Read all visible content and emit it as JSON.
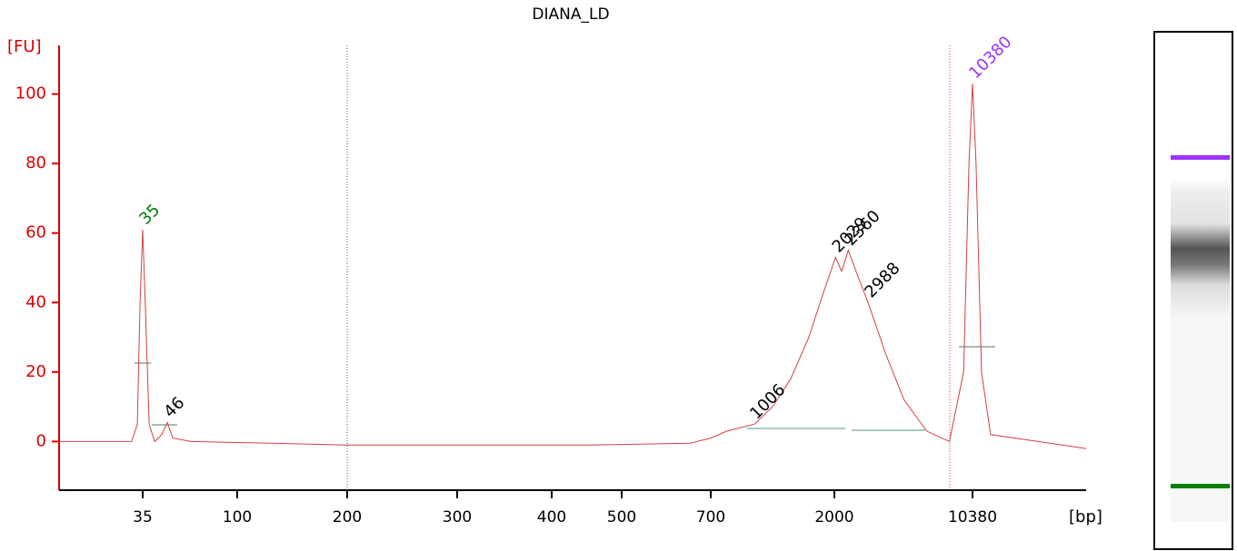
{
  "chart_data": {
    "type": "line",
    "title": "DIANA_LD",
    "ylabel": "[FU]",
    "xlabel": "[bp]",
    "color": "#d04040",
    "axis_color": "#dd0000",
    "x": [
      14,
      22,
      31,
      33,
      34,
      35,
      36,
      37.6,
      40,
      43.2,
      46,
      48.9,
      60,
      125,
      200,
      251,
      351,
      453,
      647,
      700,
      804,
      1014,
      1183,
      1380,
      1610,
      1807,
      2029,
      2180,
      2360,
      2670,
      2988,
      3700,
      4590,
      6010,
      7880,
      9330,
      9950,
      10380,
      10830,
      11550,
      12870,
      40180
    ],
    "values": [
      0,
      0,
      0,
      5,
      40,
      61,
      40,
      5,
      0,
      2,
      5.5,
      1,
      0,
      -0.5,
      -1,
      -1,
      -1,
      -1,
      -0.5,
      1,
      3,
      5,
      10,
      18,
      30,
      42,
      53,
      49,
      55,
      47,
      40,
      25,
      12,
      3,
      0,
      20,
      80,
      103,
      80,
      20,
      2,
      -2
    ],
    "xlim": [
      14,
      40180
    ],
    "xticks": [
      35,
      100,
      200,
      300,
      400,
      500,
      700,
      2000,
      10380
    ],
    "ylim": [
      -14,
      114
    ],
    "yticks": [
      0,
      20,
      40,
      60,
      80,
      100
    ],
    "annotations": [
      {
        "text": "35",
        "x": 35,
        "y": 61,
        "color": "#008000"
      },
      {
        "text": "46",
        "x": 46,
        "y": 5.5,
        "color": "#000000"
      },
      {
        "text": "1006",
        "x": 1006,
        "y": 5,
        "color": "#000000"
      },
      {
        "text": "2029",
        "x": 2029,
        "y": 53,
        "color": "#000000"
      },
      {
        "text": "2360",
        "x": 2360,
        "y": 55,
        "color": "#000000"
      },
      {
        "text": "2988",
        "x": 2988,
        "y": 40,
        "color": "#000000"
      },
      {
        "text": "10380",
        "x": 10380,
        "y": 103,
        "color": "#9933ff"
      }
    ]
  }
}
